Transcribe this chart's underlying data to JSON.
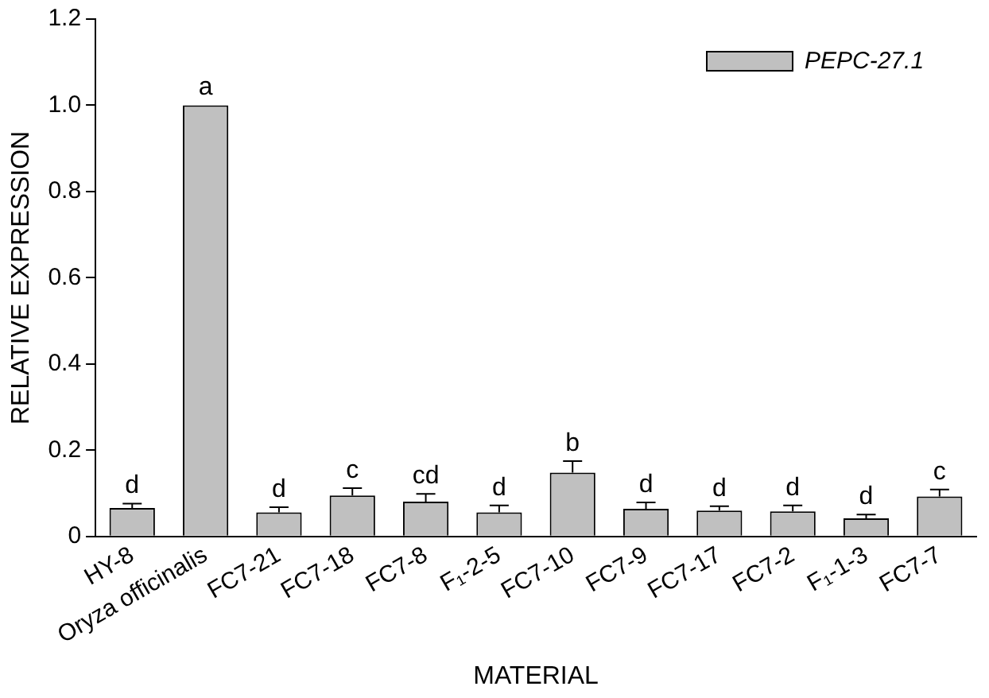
{
  "chart_data": {
    "type": "bar",
    "xlabel": "MATERIAL",
    "ylabel": "RELATIVE EXPRESSION",
    "categories": [
      "HY-8",
      "Oryza officinalis",
      "FC7-21",
      "FC7-18",
      "FC7-8",
      "F₁-2-5",
      "FC7-10",
      "FC7-9",
      "FC7-17",
      "FC7-2",
      "F₁-1-3",
      "FC7-7"
    ],
    "series": [
      {
        "name": "PEPC-27.1",
        "color": "#c0c0c0",
        "values": [
          0.066,
          1.0,
          0.056,
          0.095,
          0.081,
          0.056,
          0.148,
          0.064,
          0.06,
          0.058,
          0.042,
          0.093
        ],
        "errors": [
          [
            0.066,
            0.076
          ],
          null,
          [
            0.056,
            0.068
          ],
          [
            0.095,
            0.112
          ],
          [
            0.081,
            0.099
          ],
          [
            0.056,
            0.072
          ],
          [
            0.148,
            0.175
          ],
          [
            0.064,
            0.079
          ],
          [
            0.06,
            0.07
          ],
          [
            0.058,
            0.072
          ],
          [
            0.042,
            0.051
          ],
          [
            0.093,
            0.109
          ]
        ]
      }
    ],
    "ylim": [
      0,
      1.2
    ],
    "yticks": [
      0,
      0.2,
      0.4,
      0.6,
      0.8,
      {
        "value": 1,
        "label": "1.0"
      },
      1.2
    ],
    "grid": false,
    "legend": "top right",
    "annotations": [
      {
        "text": "d",
        "x": "HY-8",
        "y": 0.076
      },
      {
        "text": "a",
        "x": "Oryza officinalis",
        "y": 1.0
      },
      {
        "text": "d",
        "x": "FC7-21",
        "y": 0.068
      },
      {
        "text": "c",
        "x": "FC7-18",
        "y": 0.112
      },
      {
        "text": "cd",
        "x": "FC7-8",
        "y": 0.099
      },
      {
        "text": "d",
        "x": "F₁-2-5",
        "y": 0.072
      },
      {
        "text": "b",
        "x": "FC7-10",
        "y": 0.175
      },
      {
        "text": "d",
        "x": "FC7-9",
        "y": 0.079
      },
      {
        "text": "d",
        "x": "FC7-17",
        "y": 0.07
      },
      {
        "text": "d",
        "x": "FC7-2",
        "y": 0.072
      },
      {
        "text": "d",
        "x": "F₁-1-3",
        "y": 0.051
      },
      {
        "text": "c",
        "x": "FC7-7",
        "y": 0.109
      }
    ]
  }
}
